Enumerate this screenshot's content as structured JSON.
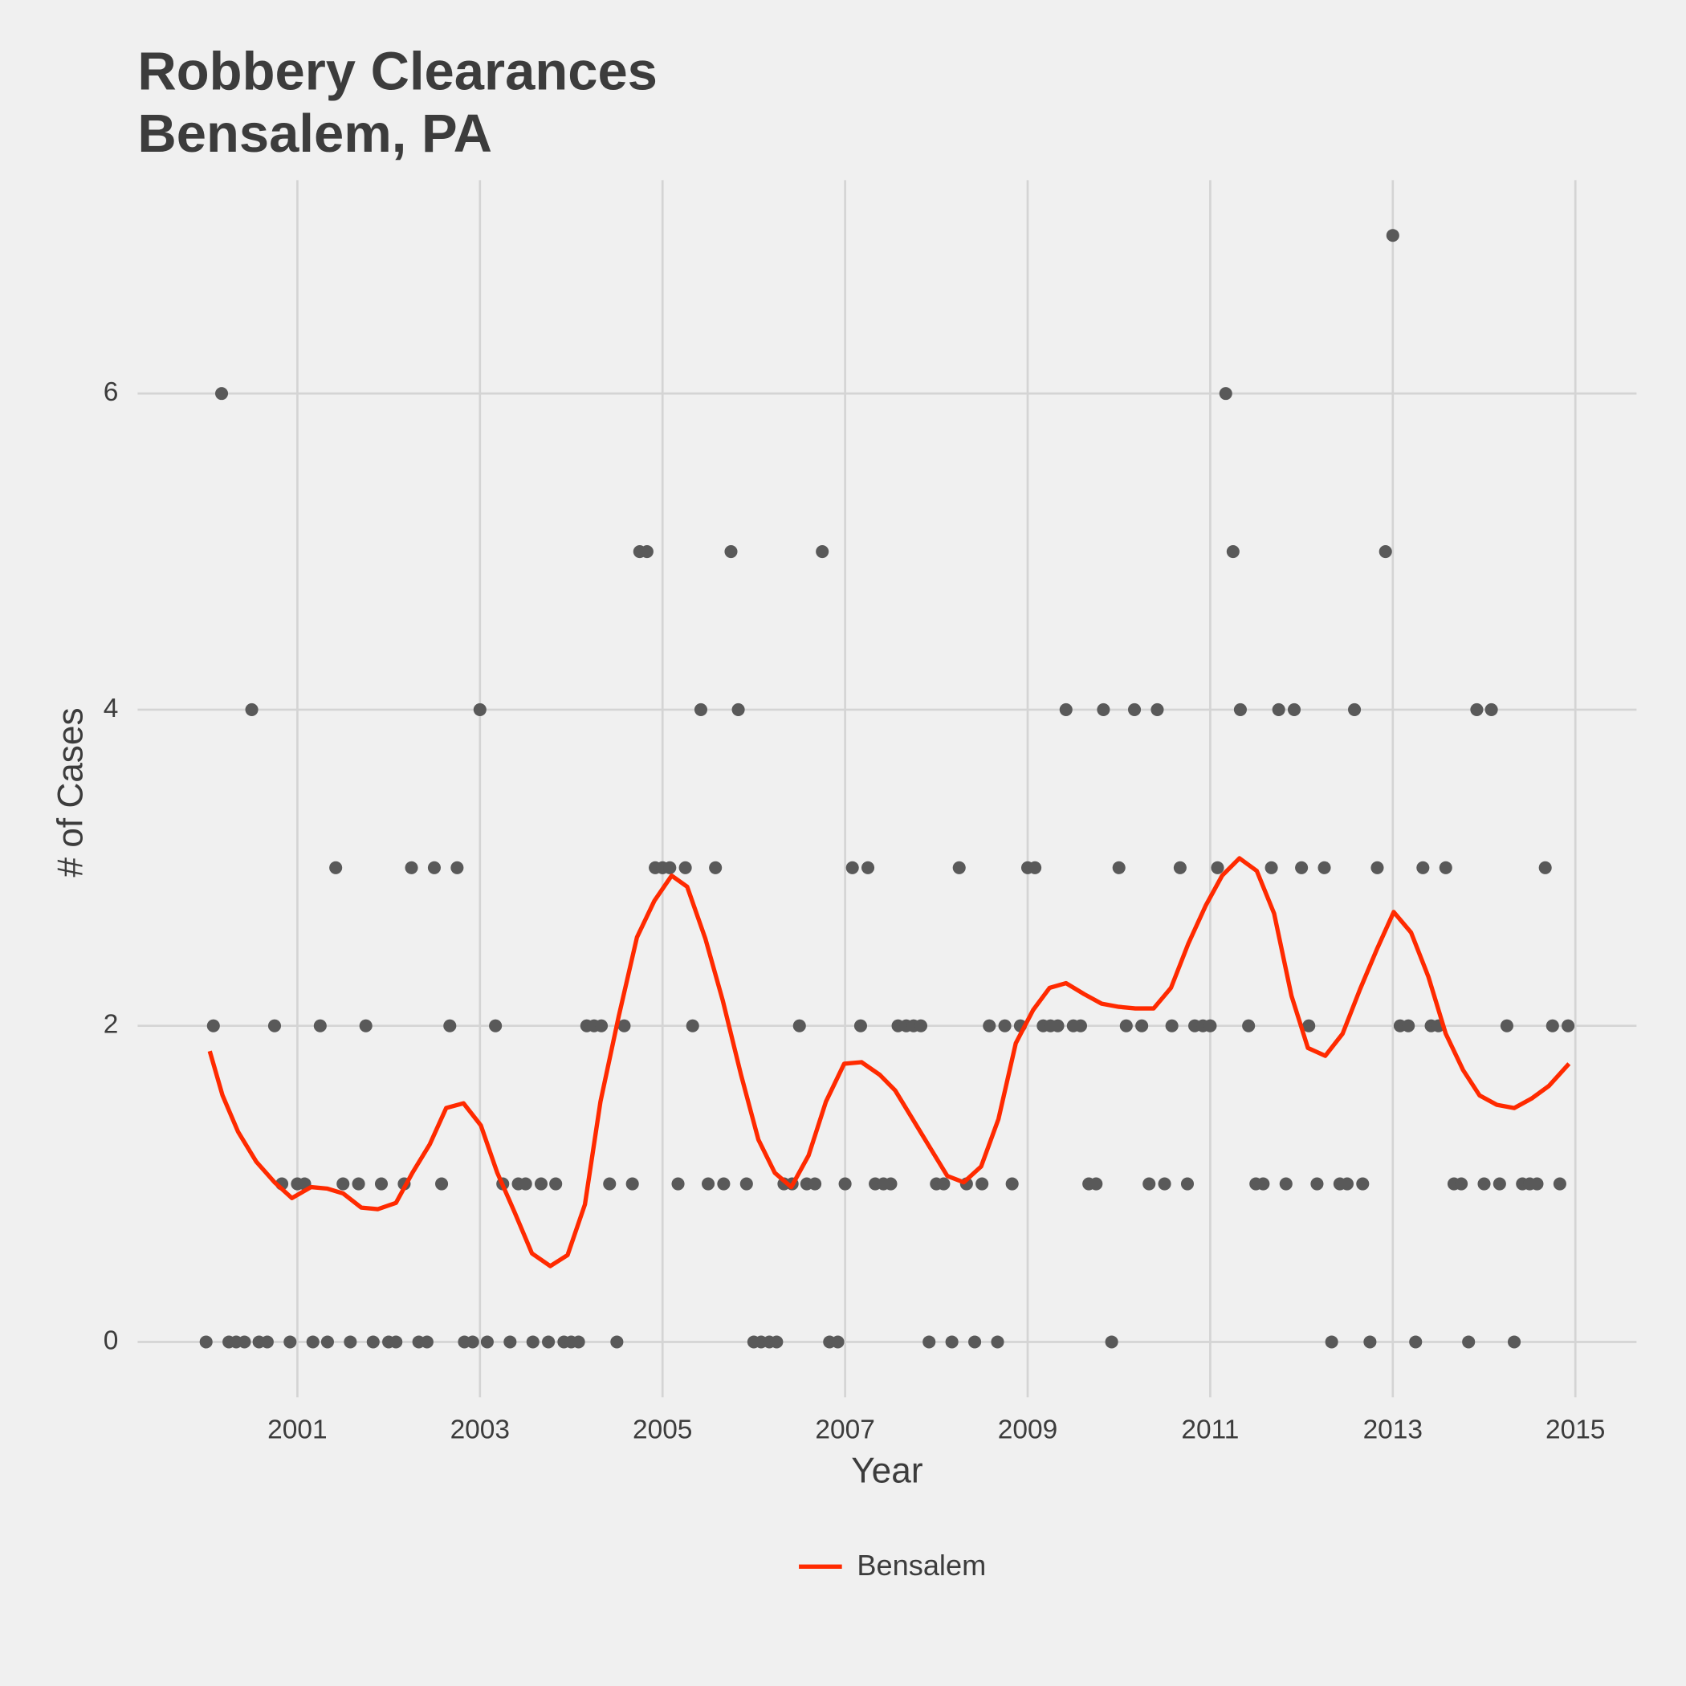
{
  "chart_data": {
    "type": "scatter",
    "title": "Robbery Clearances",
    "subtitle": "Bensalem, PA",
    "x_label": "Year",
    "y_label": "# of Cases",
    "xlim": [
      1999.25,
      2015.67
    ],
    "ylim": [
      -0.35,
      7.35
    ],
    "xticks": [
      2001,
      2003,
      2005,
      2007,
      2009,
      2011,
      2013,
      2015
    ],
    "yticks": [
      0,
      2,
      4,
      6
    ],
    "grid": true,
    "legend": "bottom",
    "series": [
      {
        "type": "scatter",
        "color": "#595959",
        "x": [
          2000.0,
          2000.08,
          2000.17,
          2000.25,
          2000.33,
          2000.42,
          2000.5,
          2000.58,
          2000.67,
          2000.75,
          2000.83,
          2000.92,
          2001.0,
          2001.08,
          2001.17,
          2001.25,
          2001.33,
          2001.42,
          2001.5,
          2001.58,
          2001.67,
          2001.75,
          2001.83,
          2001.92,
          2002.0,
          2002.08,
          2002.17,
          2002.25,
          2002.33,
          2002.42,
          2002.5,
          2002.58,
          2002.67,
          2002.75,
          2002.83,
          2002.92,
          2003.0,
          2003.08,
          2003.17,
          2003.25,
          2003.33,
          2003.42,
          2003.5,
          2003.58,
          2003.67,
          2003.75,
          2003.83,
          2003.92,
          2004.0,
          2004.08,
          2004.17,
          2004.25,
          2004.33,
          2004.42,
          2004.5,
          2004.58,
          2004.67,
          2004.75,
          2004.83,
          2004.92,
          2005.0,
          2005.08,
          2005.17,
          2005.25,
          2005.33,
          2005.42,
          2005.5,
          2005.58,
          2005.67,
          2005.75,
          2005.83,
          2005.92,
          2006.0,
          2006.08,
          2006.17,
          2006.25,
          2006.33,
          2006.42,
          2006.5,
          2006.58,
          2006.67,
          2006.75,
          2006.83,
          2006.92,
          2007.0,
          2007.08,
          2007.17,
          2007.25,
          2007.33,
          2007.42,
          2007.5,
          2007.58,
          2007.67,
          2007.75,
          2007.83,
          2007.92,
          2008.0,
          2008.08,
          2008.17,
          2008.25,
          2008.33,
          2008.42,
          2008.5,
          2008.58,
          2008.67,
          2008.75,
          2008.83,
          2008.92,
          2009.0,
          2009.08,
          2009.17,
          2009.25,
          2009.33,
          2009.42,
          2009.5,
          2009.58,
          2009.67,
          2009.75,
          2009.83,
          2009.92,
          2010.0,
          2010.08,
          2010.17,
          2010.25,
          2010.33,
          2010.42,
          2010.5,
          2010.58,
          2010.67,
          2010.75,
          2010.83,
          2010.92,
          2011.0,
          2011.08,
          2011.17,
          2011.25,
          2011.33,
          2011.42,
          2011.5,
          2011.58,
          2011.67,
          2011.75,
          2011.83,
          2011.92,
          2012.0,
          2012.08,
          2012.17,
          2012.25,
          2012.33,
          2012.42,
          2012.5,
          2012.58,
          2012.67,
          2012.75,
          2012.83,
          2012.92,
          2013.0,
          2013.08,
          2013.17,
          2013.25,
          2013.33,
          2013.42,
          2013.5,
          2013.58,
          2013.67,
          2013.75,
          2013.83,
          2013.92,
          2014.0,
          2014.08,
          2014.17,
          2014.25,
          2014.33,
          2014.42,
          2014.5,
          2014.58,
          2014.67,
          2014.75,
          2014.83,
          2014.92
        ],
        "values": [
          0,
          2,
          6,
          0,
          0,
          0,
          4,
          0,
          0,
          2,
          1,
          0,
          1,
          1,
          0,
          2,
          0,
          3,
          1,
          0,
          1,
          2,
          0,
          1,
          0,
          0,
          1,
          3,
          0,
          0,
          3,
          1,
          2,
          3,
          0,
          0,
          4,
          0,
          2,
          1,
          0,
          1,
          1,
          0,
          1,
          0,
          1,
          0,
          0,
          0,
          2,
          2,
          2,
          1,
          0,
          2,
          1,
          5,
          5,
          3,
          3,
          3,
          1,
          3,
          2,
          4,
          1,
          3,
          1,
          5,
          4,
          1,
          0,
          0,
          0,
          0,
          1,
          1,
          2,
          1,
          1,
          5,
          0,
          0,
          1,
          3,
          2,
          3,
          1,
          1,
          1,
          2,
          2,
          2,
          2,
          0,
          1,
          1,
          0,
          3,
          1,
          0,
          1,
          2,
          0,
          2,
          1,
          2,
          3,
          3,
          2,
          2,
          2,
          4,
          2,
          2,
          1,
          1,
          4,
          0,
          3,
          2,
          4,
          2,
          1,
          4,
          1,
          2,
          3,
          1,
          2,
          2,
          2,
          3,
          6,
          5,
          4,
          2,
          1,
          1,
          3,
          4,
          1,
          4,
          3,
          2,
          1,
          3,
          0,
          1,
          1,
          4,
          1,
          0,
          3,
          5,
          7,
          2,
          2,
          0,
          3,
          2,
          2,
          3,
          1,
          1,
          0,
          4,
          1,
          4,
          1,
          2,
          0,
          1,
          1,
          1,
          3,
          2,
          1,
          2
        ]
      },
      {
        "type": "line",
        "name": "Bensalem",
        "color": "#ff2a00",
        "x": [
          2000.04,
          2000.18,
          2000.35,
          2000.55,
          2000.75,
          2000.94,
          2001.15,
          2001.33,
          2001.5,
          2001.7,
          2001.88,
          2002.08,
          2002.26,
          2002.45,
          2002.63,
          2002.82,
          2003.01,
          2003.19,
          2003.38,
          2003.57,
          2003.77,
          2003.96,
          2004.15,
          2004.32,
          2004.52,
          2004.72,
          2004.91,
          2005.1,
          2005.27,
          2005.47,
          2005.66,
          2005.86,
          2006.05,
          2006.23,
          2006.41,
          2006.6,
          2006.79,
          2006.99,
          2007.18,
          2007.38,
          2007.55,
          2007.74,
          2007.94,
          2008.12,
          2008.3,
          2008.49,
          2008.68,
          2008.87,
          2009.06,
          2009.24,
          2009.42,
          2009.62,
          2009.81,
          2010.0,
          2010.18,
          2010.38,
          2010.57,
          2010.76,
          2010.95,
          2011.13,
          2011.32,
          2011.51,
          2011.7,
          2011.89,
          2012.07,
          2012.26,
          2012.45,
          2012.64,
          2012.83,
          2013.01,
          2013.2,
          2013.39,
          2013.58,
          2013.77,
          2013.95,
          2014.14,
          2014.33,
          2014.52,
          2014.71,
          2014.93
        ],
        "values": [
          1.84,
          1.56,
          1.33,
          1.14,
          1.01,
          0.91,
          0.98,
          0.97,
          0.94,
          0.85,
          0.84,
          0.88,
          1.07,
          1.25,
          1.48,
          1.51,
          1.37,
          1.07,
          0.82,
          0.56,
          0.48,
          0.55,
          0.87,
          1.52,
          2.06,
          2.56,
          2.79,
          2.95,
          2.88,
          2.55,
          2.16,
          1.69,
          1.28,
          1.07,
          0.98,
          1.18,
          1.52,
          1.76,
          1.77,
          1.69,
          1.59,
          1.41,
          1.22,
          1.05,
          1.01,
          1.11,
          1.41,
          1.89,
          2.1,
          2.24,
          2.27,
          2.2,
          2.14,
          2.12,
          2.11,
          2.11,
          2.24,
          2.52,
          2.76,
          2.95,
          3.06,
          2.98,
          2.71,
          2.19,
          1.86,
          1.81,
          1.95,
          2.23,
          2.49,
          2.72,
          2.59,
          2.31,
          1.95,
          1.72,
          1.56,
          1.5,
          1.48,
          1.54,
          1.62,
          1.76
        ]
      }
    ]
  }
}
